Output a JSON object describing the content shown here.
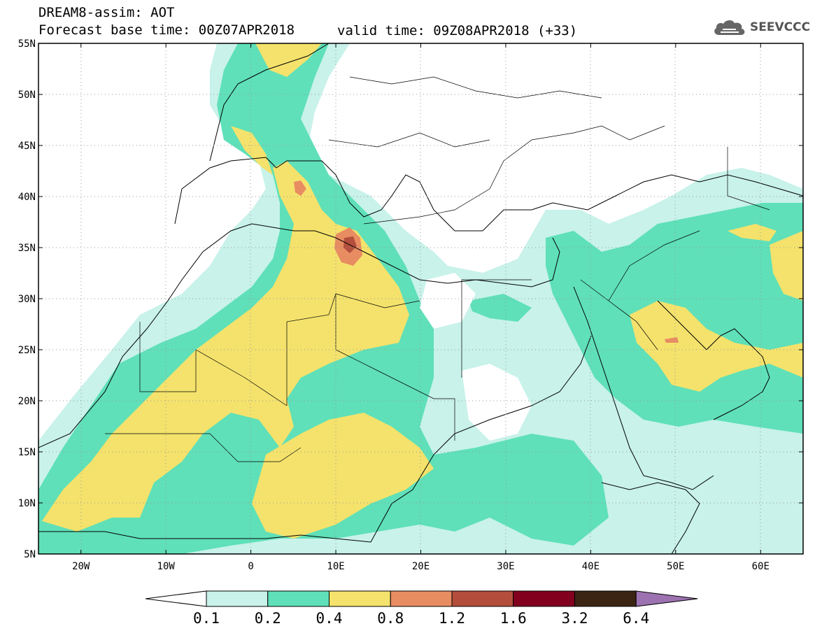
{
  "header": {
    "line1": "DREAM8-assim: AOT",
    "line2": "Forecast base time: 00Z07APR2018",
    "valid": "valid time: 09Z08APR2018 (+33)",
    "logo_text": "SEEVCCC"
  },
  "map": {
    "projection": "lat-lon",
    "lon_range": [
      -25,
      65
    ],
    "lat_range": [
      5,
      55
    ],
    "x_ticks": [
      "20W",
      "10W",
      "0",
      "10E",
      "20E",
      "30E",
      "40E",
      "50E",
      "60E"
    ],
    "y_ticks": [
      "55N",
      "50N",
      "45N",
      "40N",
      "35N",
      "30N",
      "25N",
      "20N",
      "15N",
      "10N",
      "5N"
    ],
    "grid": true
  },
  "legend": {
    "labels": [
      "0.1",
      "0.2",
      "0.4",
      "0.8",
      "1.2",
      "1.6",
      "3.2",
      "6.4"
    ],
    "colors": [
      "#ffffff",
      "#c8f2ea",
      "#5fe0b8",
      "#f4e26c",
      "#e88c62",
      "#b44e3c",
      "#82001e",
      "#3c2414",
      "#9d72b0"
    ]
  }
}
